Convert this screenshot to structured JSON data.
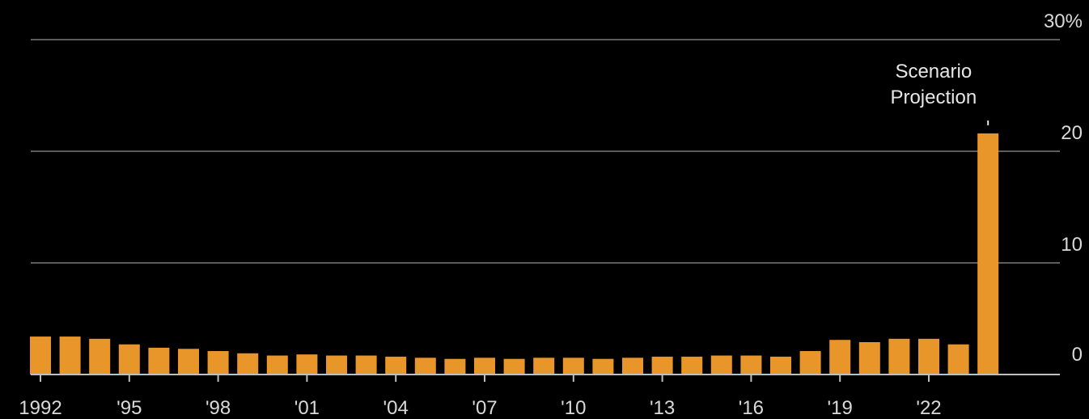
{
  "chart_data": {
    "type": "bar",
    "title": "",
    "xlabel": "",
    "ylabel": "",
    "ylim": [
      0,
      30
    ],
    "grid": true,
    "y_axis_side": "right",
    "y_ticks": [
      "0",
      "10",
      "20",
      "30%"
    ],
    "x_tick_labels": [
      "1992",
      "'95",
      "'98",
      "'01",
      "'04",
      "'07",
      "'10",
      "'13",
      "'16",
      "'19",
      "'22"
    ],
    "categories": [
      "1992",
      "1993",
      "1994",
      "1995",
      "1996",
      "1997",
      "1998",
      "1999",
      "2000",
      "2001",
      "2002",
      "2003",
      "2004",
      "2005",
      "2006",
      "2007",
      "2008",
      "2009",
      "2010",
      "2011",
      "2012",
      "2013",
      "2014",
      "2015",
      "2016",
      "2017",
      "2018",
      "2019",
      "2020",
      "2021",
      "2022",
      "2023",
      "2024"
    ],
    "values": [
      3.4,
      3.4,
      3.2,
      2.7,
      2.4,
      2.3,
      2.1,
      1.9,
      1.7,
      1.8,
      1.7,
      1.7,
      1.6,
      1.5,
      1.4,
      1.5,
      1.4,
      1.5,
      1.5,
      1.4,
      1.5,
      1.6,
      1.6,
      1.7,
      1.7,
      1.6,
      2.1,
      3.1,
      2.9,
      3.2,
      3.2,
      2.7,
      21.6
    ],
    "bar_color": "#e8962a",
    "annotation": {
      "lines": [
        "Scenario",
        "Projection"
      ],
      "target_category": "2024"
    }
  }
}
